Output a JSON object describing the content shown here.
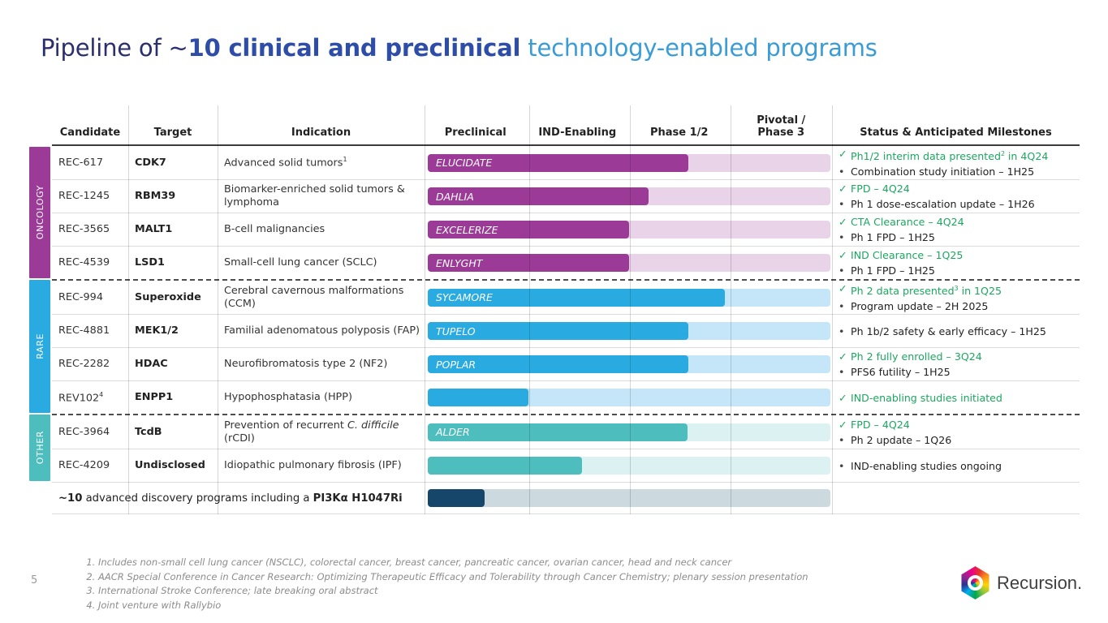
{
  "title": {
    "part1": "Pipeline of ~",
    "part2": "10 clinical and preclinical",
    "part3": " technology-enabled programs"
  },
  "page_number": "5",
  "table": {
    "headers": {
      "candidate": "Candidate",
      "target": "Target",
      "indication": "Indication",
      "phases": [
        "Preclinical",
        "IND-Enabling",
        "Phase 1/2",
        "Pivotal /\nPhase 3"
      ],
      "status": "Status & Anticipated Milestones"
    },
    "sections": [
      {
        "name": "ONCOLOGY",
        "color": "#9b3b97",
        "fill_color": "#9b3b97",
        "track_color": "#e8d3e8",
        "rows": [
          {
            "candidate": [
              {
                "t": "REC-617"
              }
            ],
            "target": "CDK7",
            "indication": [
              {
                "t": "Advanced solid tumors"
              },
              {
                "t": "1",
                "sup": true
              }
            ],
            "bar": {
              "label": "ELUCIDATE",
              "fraction": 0.647
            },
            "status": [
              {
                "marker": "check",
                "green": true,
                "segments": [
                  {
                    "t": "Ph1/2 interim data presented"
                  },
                  {
                    "t": "2",
                    "sup": true
                  },
                  {
                    "t": " in 4Q24"
                  }
                ]
              },
              {
                "marker": "bullet",
                "green": false,
                "segments": [
                  {
                    "t": "Combination study initiation – 1H25"
                  }
                ]
              }
            ]
          },
          {
            "candidate": [
              {
                "t": "REC-1245"
              }
            ],
            "target": "RBM39",
            "indication": [
              {
                "t": "Biomarker-enriched solid tumors & lymphoma"
              }
            ],
            "bar": {
              "label": "DAHLIA",
              "fraction": 0.548
            },
            "status": [
              {
                "marker": "check",
                "green": true,
                "segments": [
                  {
                    "t": "FPD – 4Q24"
                  }
                ]
              },
              {
                "marker": "bullet",
                "green": false,
                "segments": [
                  {
                    "t": "Ph 1 dose-escalation update – 1H26"
                  }
                ]
              }
            ]
          },
          {
            "candidate": [
              {
                "t": "REC-3565"
              }
            ],
            "target": "MALT1",
            "indication": [
              {
                "t": "B-cell malignancies"
              }
            ],
            "bar": {
              "label": "EXCELERIZE",
              "fraction": 0.5
            },
            "status": [
              {
                "marker": "check",
                "green": true,
                "segments": [
                  {
                    "t": "CTA Clearance – 4Q24"
                  }
                ]
              },
              {
                "marker": "bullet",
                "green": false,
                "segments": [
                  {
                    "t": "Ph 1 FPD – 1H25"
                  }
                ]
              }
            ]
          },
          {
            "candidate": [
              {
                "t": "REC-4539"
              }
            ],
            "target": "LSD1",
            "indication": [
              {
                "t": "Small-cell lung cancer (SCLC)"
              }
            ],
            "bar": {
              "label": "ENLYGHT",
              "fraction": 0.5
            },
            "status": [
              {
                "marker": "check",
                "green": true,
                "segments": [
                  {
                    "t": "IND Clearance – 1Q25"
                  }
                ]
              },
              {
                "marker": "bullet",
                "green": false,
                "segments": [
                  {
                    "t": "Ph 1 FPD – 1H25"
                  }
                ]
              }
            ]
          }
        ]
      },
      {
        "name": "RARE",
        "color": "#29aae1",
        "fill_color": "#29aae1",
        "track_color": "#c4e6f8",
        "rows": [
          {
            "candidate": [
              {
                "t": "REC-994"
              }
            ],
            "target": "Superoxide",
            "indication": [
              {
                "t": "Cerebral cavernous malformations (CCM)"
              }
            ],
            "bar": {
              "label": "SYCAMORE",
              "fraction": 0.738
            },
            "status": [
              {
                "marker": "check",
                "green": true,
                "segments": [
                  {
                    "t": "Ph 2 data presented"
                  },
                  {
                    "t": "3",
                    "sup": true
                  },
                  {
                    "t": " in 1Q25"
                  }
                ]
              },
              {
                "marker": "bullet",
                "green": false,
                "segments": [
                  {
                    "t": "Program update – 2H 2025"
                  }
                ]
              }
            ]
          },
          {
            "candidate": [
              {
                "t": "REC-4881"
              }
            ],
            "target": "MEK1/2",
            "indication": [
              {
                "t": "Familial adenomatous polyposis (FAP)"
              }
            ],
            "bar": {
              "label": "TUPELO",
              "fraction": 0.647
            },
            "status": [
              {
                "marker": "bullet",
                "green": false,
                "segments": [
                  {
                    "t": "Ph 1b/2 safety & early efficacy – 1H25"
                  }
                ]
              }
            ]
          },
          {
            "candidate": [
              {
                "t": "REC-2282"
              }
            ],
            "target": "HDAC",
            "indication": [
              {
                "t": "Neurofibromatosis type 2 (NF2)"
              }
            ],
            "bar": {
              "label": "POPLAR",
              "fraction": 0.647
            },
            "status": [
              {
                "marker": "check",
                "green": true,
                "segments": [
                  {
                    "t": "Ph 2 fully enrolled – 3Q24"
                  }
                ]
              },
              {
                "marker": "bullet",
                "green": false,
                "segments": [
                  {
                    "t": "PFS6 futility – 1H25"
                  }
                ]
              }
            ]
          },
          {
            "candidate": [
              {
                "t": "REV102"
              },
              {
                "t": "4",
                "sup": true
              }
            ],
            "target": "ENPP1",
            "indication": [
              {
                "t": "Hypophosphatasia (HPP)"
              }
            ],
            "bar": {
              "label": "",
              "fraction": 0.25
            },
            "status": [
              {
                "marker": "check",
                "green": true,
                "segments": [
                  {
                    "t": "IND-enabling studies initiated"
                  }
                ]
              }
            ]
          }
        ]
      },
      {
        "name": "OTHER",
        "color": "#4dbdbd",
        "fill_color": "#4dbdbd",
        "track_color": "#dcf1f1",
        "rows": [
          {
            "candidate": [
              {
                "t": "REC-3964"
              }
            ],
            "target": "TcdB",
            "indication": [
              {
                "t": "Prevention of recurrent "
              },
              {
                "t": "C. difficile",
                "i": true
              },
              {
                "t": " (rCDI)"
              }
            ],
            "bar": {
              "label": "ALDER",
              "fraction": 0.645
            },
            "status": [
              {
                "marker": "check",
                "green": true,
                "segments": [
                  {
                    "t": "FPD – 4Q24"
                  }
                ]
              },
              {
                "marker": "bullet",
                "green": false,
                "segments": [
                  {
                    "t": "Ph 2 update – 1Q26"
                  }
                ]
              }
            ]
          },
          {
            "candidate": [
              {
                "t": "REC-4209"
              }
            ],
            "target": "Undisclosed",
            "indication": [
              {
                "t": "Idiopathic pulmonary fibrosis (IPF)"
              }
            ],
            "bar": {
              "label": "",
              "fraction": 0.383
            },
            "status": [
              {
                "marker": "bullet",
                "green": false,
                "segments": [
                  {
                    "t": "IND-enabling studies ongoing"
                  }
                ]
              }
            ]
          }
        ]
      }
    ],
    "summary_row": {
      "segments": [
        {
          "t": "~10",
          "b": true
        },
        {
          "t": " advanced discovery programs including a "
        },
        {
          "t": "PI3Kα H1047Ri",
          "b": true
        }
      ],
      "bar": {
        "label": "",
        "fraction": 0.141,
        "fill_color": "#16476b",
        "track_color": "#ccd9de"
      }
    }
  },
  "footnotes": [
    "Includes non-small cell lung cancer (NSCLC), colorectal cancer, breast cancer, pancreatic cancer, ovarian cancer, head and neck cancer",
    "AACR Special Conference in Cancer Research: Optimizing Therapeutic Efficacy and Tolerability through Cancer Chemistry; plenary session presentation",
    "International Stroke Conference; late breaking oral abstract",
    "Joint venture with Rallybio"
  ],
  "logo": {
    "text": "Recursion."
  },
  "colors": {
    "milestone_green": "#1ca75f",
    "title_dark": "#2b2f6e",
    "title_blue": "#2d4da8",
    "title_light_blue": "#3a9cd6"
  }
}
